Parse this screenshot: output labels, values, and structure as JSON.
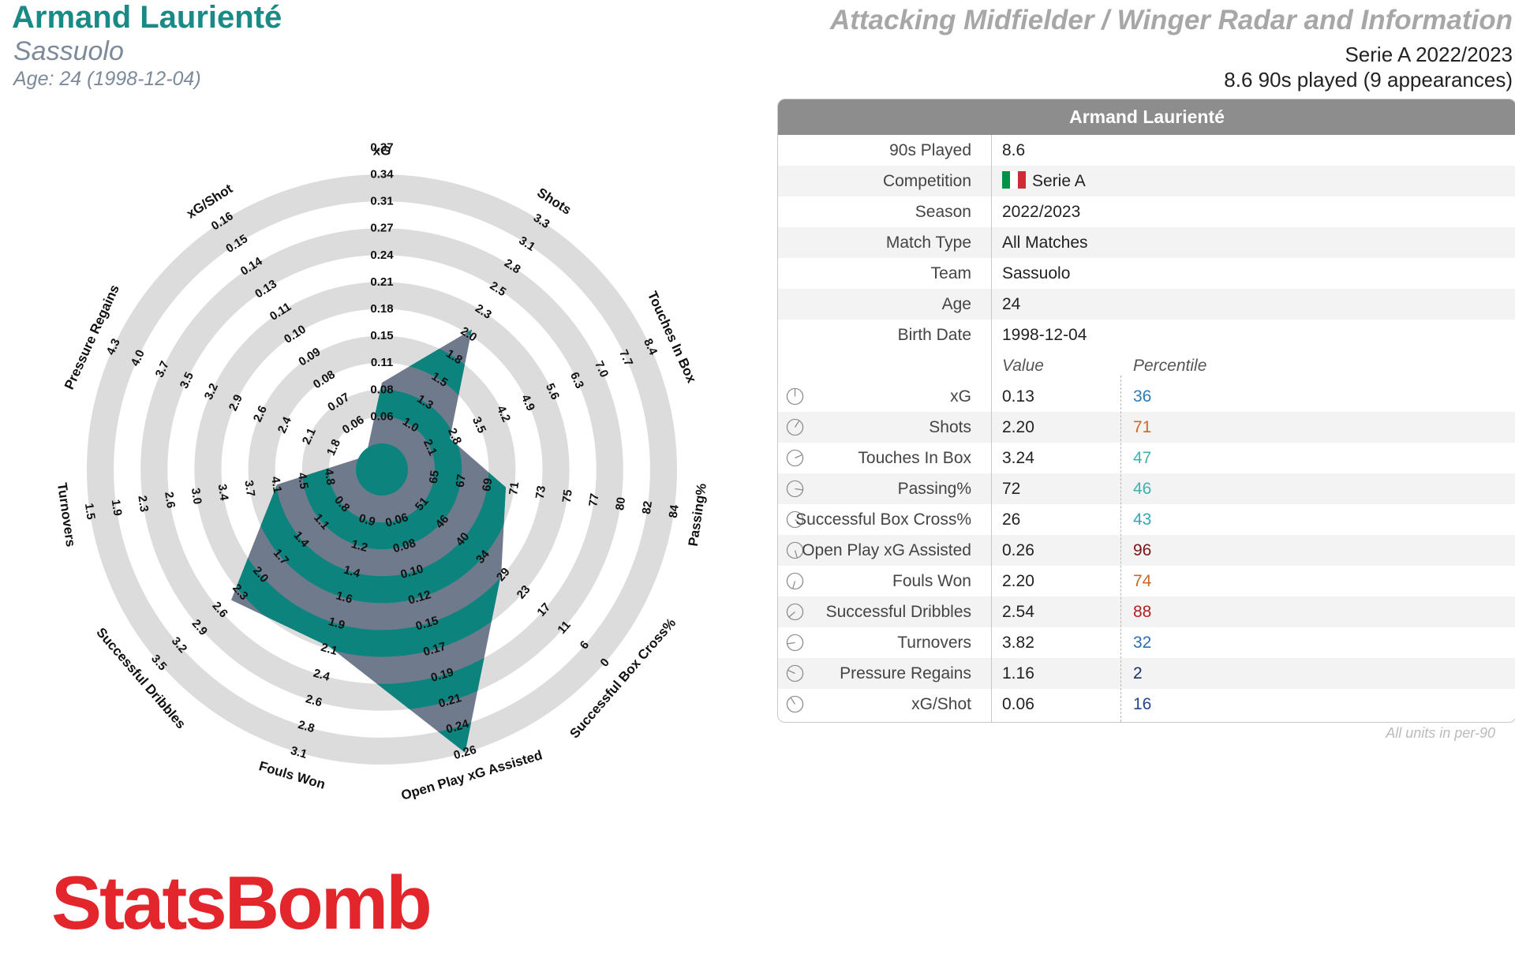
{
  "header": {
    "player_name": "Armand Laurienté",
    "team": "Sassuolo",
    "age_line": "Age: 24 (1998-12-04)",
    "radar_title": "Attacking Midfielder / Winger Radar and Information",
    "league_season": "Serie A 2022/2023",
    "played_line": "8.6 90s played (9 appearances)"
  },
  "colors": {
    "teal": "#0d837e",
    "slate": "#6f7b8d",
    "ring": "#dcdcdc",
    "brand_red": "#e2262c"
  },
  "chart_data": {
    "type": "radar",
    "title": "",
    "metrics": [
      {
        "name": "xG",
        "ticks": [
          "0.06",
          "0.08",
          "0.11",
          "0.15",
          "0.18",
          "0.21",
          "0.24",
          "0.27",
          "0.31",
          "0.34",
          "0.37"
        ],
        "value": 0.13,
        "percentile": 36
      },
      {
        "name": "Shots",
        "ticks": [
          "1.0",
          "1.3",
          "1.5",
          "1.8",
          "2.0",
          "2.3",
          "2.5",
          "2.8",
          "3.1",
          "3.3"
        ],
        "value": 2.2,
        "percentile": 71
      },
      {
        "name": "Touches In Box",
        "ticks": [
          "2.1",
          "2.8",
          "3.5",
          "4.2",
          "4.9",
          "5.6",
          "6.3",
          "7.0",
          "7.7",
          "8.4"
        ],
        "value": 3.24,
        "percentile": 47
      },
      {
        "name": "Passing%",
        "ticks": [
          "65",
          "67",
          "69",
          "71",
          "73",
          "75",
          "77",
          "80",
          "82",
          "84"
        ],
        "value": 72,
        "percentile": 46
      },
      {
        "name": "Successful Box Cross%",
        "ticks": [
          "51",
          "46",
          "40",
          "34",
          "29",
          "23",
          "17",
          "11",
          "6",
          "0"
        ],
        "value": 26,
        "percentile": 43
      },
      {
        "name": "Open Play xG Assisted",
        "ticks": [
          "0.06",
          "0.08",
          "0.10",
          "0.12",
          "0.15",
          "0.17",
          "0.19",
          "0.21",
          "0.24",
          "0.26"
        ],
        "value": 0.26,
        "percentile": 96
      },
      {
        "name": "Fouls Won",
        "ticks": [
          "0.9",
          "1.2",
          "1.4",
          "1.6",
          "1.9",
          "2.1",
          "2.4",
          "2.6",
          "2.8",
          "3.1"
        ],
        "value": 2.2,
        "percentile": 74
      },
      {
        "name": "Successful Dribbles",
        "ticks": [
          "0.8",
          "1.1",
          "1.4",
          "1.7",
          "2.0",
          "2.3",
          "2.6",
          "2.9",
          "3.2",
          "3.5"
        ],
        "value": 2.54,
        "percentile": 88
      },
      {
        "name": "Turnovers",
        "ticks": [
          "4.8",
          "4.5",
          "4.1",
          "3.7",
          "3.4",
          "3.0",
          "2.6",
          "2.3",
          "1.9",
          "1.5"
        ],
        "value": 3.82,
        "percentile": 32
      },
      {
        "name": "Pressure Regains",
        "ticks": [
          "1.8",
          "2.1",
          "2.4",
          "2.6",
          "2.9",
          "3.2",
          "3.5",
          "3.7",
          "4.0",
          "4.3"
        ],
        "value": 1.16,
        "percentile": 2
      },
      {
        "name": "xG/Shot",
        "ticks": [
          "0.06",
          "0.07",
          "0.08",
          "0.09",
          "0.10",
          "0.11",
          "0.13",
          "0.14",
          "0.15",
          "0.16"
        ],
        "value": 0.06,
        "percentile": 16
      }
    ]
  },
  "table": {
    "header": "Armand Laurienté",
    "info_rows": [
      {
        "label": "90s Played",
        "value": "8.6"
      },
      {
        "label": "Competition",
        "value": "Serie A",
        "flag": [
          "#009246",
          "#ffffff",
          "#ce2b37"
        ]
      },
      {
        "label": "Season",
        "value": "2022/2023"
      },
      {
        "label": "Match Type",
        "value": "All Matches"
      },
      {
        "label": "Team",
        "value": "Sassuolo"
      },
      {
        "label": "Age",
        "value": "24"
      },
      {
        "label": "Birth Date",
        "value": "1998-12-04"
      }
    ],
    "col_value": "Value",
    "col_percentile": "Percentile",
    "metric_rows": [
      {
        "label": "xG",
        "value": "0.13",
        "percentile": "36",
        "color": "#2a7bb5"
      },
      {
        "label": "Shots",
        "value": "2.20",
        "percentile": "71",
        "color": "#c8682a"
      },
      {
        "label": "Touches In Box",
        "value": "3.24",
        "percentile": "47",
        "color": "#3fb2ad"
      },
      {
        "label": "Passing%",
        "value": "72",
        "percentile": "46",
        "color": "#3fb2ad"
      },
      {
        "label": "Successful Box Cross%",
        "value": "26",
        "percentile": "43",
        "color": "#2fa8b8"
      },
      {
        "label": "Open Play xG Assisted",
        "value": "0.26",
        "percentile": "96",
        "color": "#7a1518"
      },
      {
        "label": "Fouls Won",
        "value": "2.20",
        "percentile": "74",
        "color": "#c8682a"
      },
      {
        "label": "Successful Dribbles",
        "value": "2.54",
        "percentile": "88",
        "color": "#b02020"
      },
      {
        "label": "Turnovers",
        "value": "3.82",
        "percentile": "32",
        "color": "#2a6db5"
      },
      {
        "label": "Pressure Regains",
        "value": "1.16",
        "percentile": "2",
        "color": "#1c2f66"
      },
      {
        "label": "xG/Shot",
        "value": "0.06",
        "percentile": "16",
        "color": "#24458f"
      }
    ]
  },
  "footer": {
    "units_note": "All units in per-90",
    "logo_text": "StatsBomb"
  }
}
